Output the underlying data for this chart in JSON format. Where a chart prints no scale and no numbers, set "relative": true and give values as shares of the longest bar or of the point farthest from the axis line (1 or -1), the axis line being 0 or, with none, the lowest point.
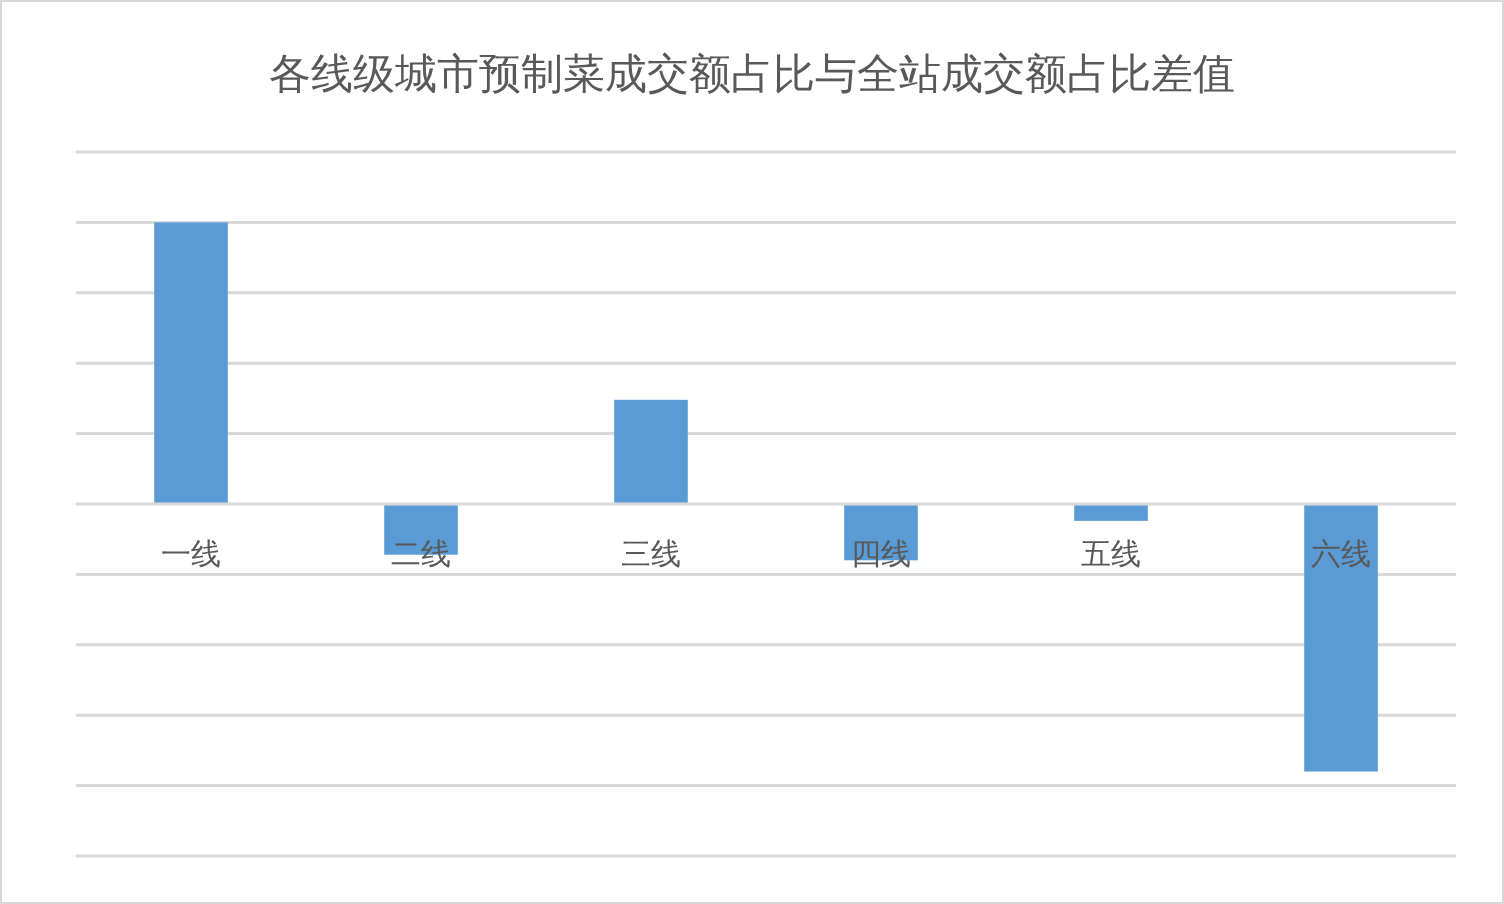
{
  "chart_data": {
    "type": "bar",
    "title": "各线级城市预制菜成交额占比与全站成交额占比差值",
    "categories": [
      "一线",
      "二线",
      "三线",
      "四线",
      "五线",
      "六线"
    ],
    "values": [
      1,
      -0.18,
      0.37,
      -0.2,
      -0.06,
      -0.95
    ],
    "color": "#5b9bd5",
    "relative": true,
    "grid": true
  }
}
